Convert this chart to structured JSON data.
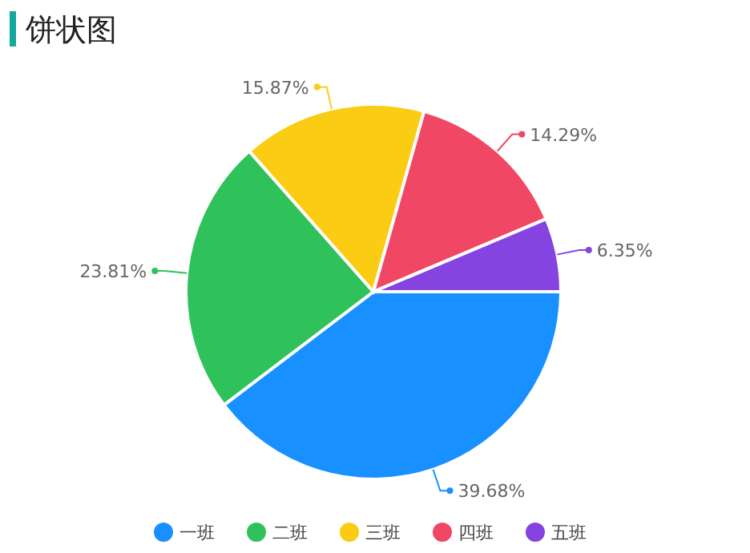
{
  "chart_data": {
    "type": "pie",
    "title": "饼状图",
    "categories": [
      "一班",
      "二班",
      "三班",
      "四班",
      "五班"
    ],
    "values": [
      39.68,
      23.81,
      15.87,
      14.29,
      6.35
    ],
    "colors": [
      "#1890ff",
      "#2fc25b",
      "#facc14",
      "#f04864",
      "#8543e0"
    ],
    "value_labels": [
      "39.68%",
      "23.81%",
      "15.87%",
      "14.29%",
      "6.35%"
    ],
    "legend": "bottom"
  }
}
